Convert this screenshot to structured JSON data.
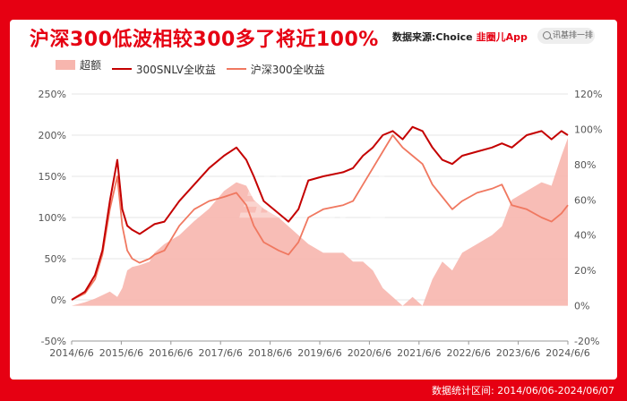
{
  "title": "沪深300低波相较300多了将近100%",
  "source": {
    "label": "数据来源:",
    "choice": "Choice",
    "brand": "韭圈儿App"
  },
  "search": {
    "placeholder": "讯基排一排"
  },
  "legend": [
    {
      "name": "超额",
      "color": "#f7b6ae",
      "kind": "area"
    },
    {
      "name": "300SNLV全收益",
      "color": "#c40000",
      "kind": "line"
    },
    {
      "name": "沪深300全收益",
      "color": "#f07860",
      "kind": "line"
    }
  ],
  "watermark": "韭圈儿",
  "footer": "数据统计区间: 2014/06/06-2024/06/07",
  "chart_data": {
    "type": "line",
    "x_ticks": [
      "2014/6/6",
      "2015/6/6",
      "2016/6/6",
      "2017/6/6",
      "2018/6/6",
      "2019/6/6",
      "2020/6/6",
      "2021/6/6",
      "2022/6/6",
      "2023/6/6",
      "2024/6/6"
    ],
    "y_left": {
      "min": -50,
      "max": 250,
      "ticks": [
        "-50%",
        "0%",
        "50%",
        "100%",
        "150%",
        "200%",
        "250%"
      ]
    },
    "y_right": {
      "min": -20,
      "max": 120,
      "ticks": [
        "-20%",
        "0%",
        "20%",
        "40%",
        "60%",
        "80%",
        "100%",
        "120%"
      ]
    },
    "grid": true,
    "legend_position": "top-left",
    "x": [
      2014.43,
      2014.7,
      2014.9,
      2015.05,
      2015.2,
      2015.35,
      2015.45,
      2015.55,
      2015.65,
      2015.8,
      2016.0,
      2016.1,
      2016.3,
      2016.6,
      2016.9,
      2017.2,
      2017.5,
      2017.75,
      2017.95,
      2018.1,
      2018.3,
      2018.6,
      2018.8,
      2019.0,
      2019.2,
      2019.5,
      2019.9,
      2020.1,
      2020.3,
      2020.5,
      2020.7,
      2020.9,
      2021.1,
      2021.3,
      2021.5,
      2021.7,
      2021.9,
      2022.1,
      2022.3,
      2022.6,
      2022.9,
      2023.1,
      2023.3,
      2023.6,
      2023.9,
      2024.1,
      2024.3,
      2024.43
    ],
    "series": [
      {
        "name": "超额",
        "axis": "right",
        "values": [
          0,
          2,
          4,
          6,
          8,
          5,
          10,
          20,
          22,
          23,
          25,
          30,
          35,
          40,
          48,
          55,
          65,
          70,
          68,
          60,
          55,
          50,
          45,
          40,
          35,
          30,
          30,
          25,
          25,
          20,
          10,
          5,
          0,
          5,
          0,
          15,
          25,
          20,
          30,
          35,
          40,
          45,
          60,
          65,
          70,
          68,
          85,
          95
        ]
      },
      {
        "name": "300SNLV全收益",
        "axis": "left",
        "values": [
          0,
          10,
          30,
          60,
          120,
          170,
          110,
          90,
          85,
          80,
          88,
          92,
          95,
          120,
          140,
          160,
          175,
          185,
          170,
          150,
          120,
          105,
          95,
          110,
          145,
          150,
          155,
          160,
          175,
          185,
          200,
          205,
          195,
          210,
          205,
          185,
          170,
          165,
          175,
          180,
          185,
          190,
          185,
          200,
          205,
          195,
          205,
          200
        ]
      },
      {
        "name": "沪深300全收益",
        "axis": "left",
        "values": [
          0,
          8,
          25,
          55,
          110,
          150,
          90,
          60,
          50,
          45,
          50,
          55,
          60,
          90,
          110,
          120,
          125,
          130,
          115,
          90,
          70,
          60,
          55,
          70,
          100,
          110,
          115,
          120,
          140,
          160,
          180,
          200,
          185,
          175,
          165,
          140,
          125,
          110,
          120,
          130,
          135,
          140,
          115,
          110,
          100,
          95,
          105,
          115
        ]
      }
    ]
  }
}
